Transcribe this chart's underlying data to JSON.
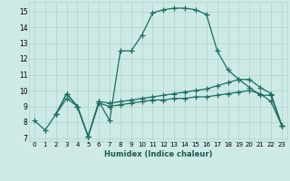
{
  "xlabel": "Humidex (Indice chaleur)",
  "bg_color": "#ceeae6",
  "grid_color": "#aed4cf",
  "line_color": "#1a6e62",
  "xlim": [
    -0.5,
    23.5
  ],
  "ylim": [
    6.8,
    15.6
  ],
  "xticks": [
    0,
    1,
    2,
    3,
    4,
    5,
    6,
    7,
    8,
    9,
    10,
    11,
    12,
    13,
    14,
    15,
    16,
    17,
    18,
    19,
    20,
    21,
    22,
    23
  ],
  "yticks": [
    7,
    8,
    9,
    10,
    11,
    12,
    13,
    14,
    15
  ],
  "line1_x": [
    0,
    1,
    2,
    3,
    4,
    5,
    6,
    7,
    8,
    9,
    10,
    11,
    12,
    13,
    14,
    15,
    16,
    17,
    18,
    19,
    20,
    21,
    22,
    23
  ],
  "line1_y": [
    8.1,
    7.5,
    8.5,
    9.8,
    9.0,
    7.1,
    9.3,
    8.1,
    12.5,
    12.5,
    13.5,
    14.9,
    15.1,
    15.2,
    15.2,
    15.1,
    14.8,
    12.5,
    11.3,
    10.7,
    10.2,
    9.7,
    9.7,
    7.8
  ],
  "line2_x": [
    2,
    3,
    4,
    5,
    6,
    7,
    8,
    9,
    10,
    11,
    12,
    13,
    14,
    15,
    16,
    17,
    18,
    19,
    20,
    21,
    22,
    23
  ],
  "line2_y": [
    8.5,
    9.8,
    9.0,
    7.1,
    9.3,
    9.2,
    9.3,
    9.4,
    9.5,
    9.6,
    9.7,
    9.8,
    9.9,
    10.0,
    10.1,
    10.3,
    10.5,
    10.7,
    10.7,
    10.2,
    9.8,
    7.8
  ],
  "line3_x": [
    2,
    3,
    4,
    5,
    6,
    7,
    8,
    9,
    10,
    11,
    12,
    13,
    14,
    15,
    16,
    17,
    18,
    19,
    20,
    21,
    22,
    23
  ],
  "line3_y": [
    8.5,
    9.5,
    9.0,
    7.1,
    9.2,
    9.0,
    9.1,
    9.2,
    9.3,
    9.4,
    9.4,
    9.5,
    9.5,
    9.6,
    9.6,
    9.7,
    9.8,
    9.9,
    10.0,
    9.8,
    9.3,
    7.8
  ]
}
